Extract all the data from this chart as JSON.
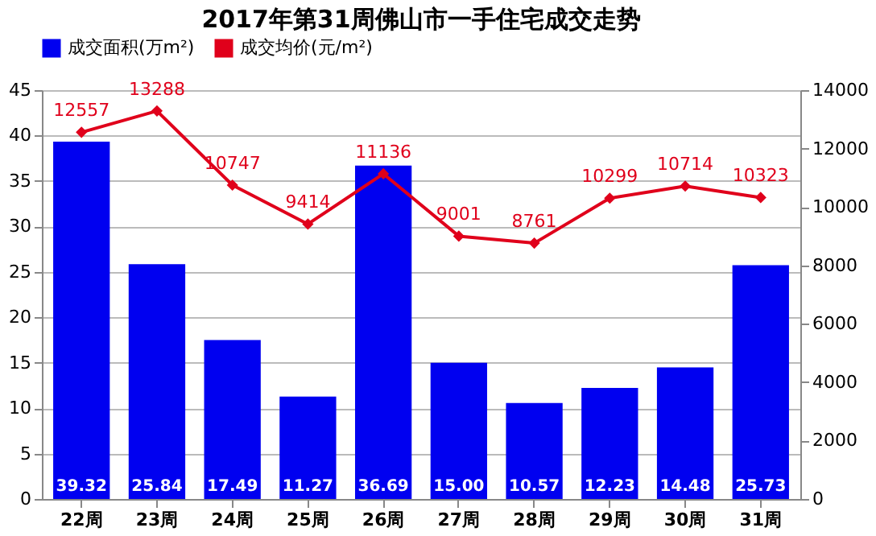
{
  "chart_data": {
    "type": "bar",
    "title": "2017年第31周佛山市一手住宅成交走势",
    "categories": [
      "22周",
      "23周",
      "24周",
      "25周",
      "26周",
      "27周",
      "28周",
      "29周",
      "30周",
      "31周"
    ],
    "series": [
      {
        "name": "成交面积(万m²)",
        "color": "#0000f0",
        "values": [
          39.32,
          25.84,
          17.49,
          11.27,
          36.69,
          15.0,
          10.57,
          12.23,
          14.48,
          25.73
        ],
        "value_labels": [
          "39.32",
          "25.84",
          "17.49",
          "11.27",
          "36.69",
          "15.00",
          "10.57",
          "12.23",
          "14.48",
          "25.73"
        ]
      },
      {
        "name": "成交均价(元/m²)",
        "type": "line",
        "axis": "y2",
        "color": "#e0001b",
        "marker": "diamond",
        "values": [
          12557,
          13288,
          10747,
          9414,
          11136,
          9001,
          8761,
          10299,
          10714,
          10323
        ],
        "value_labels": [
          "12557",
          "13288",
          "10747",
          "9414",
          "11136",
          "9001",
          "8761",
          "10299",
          "10714",
          "10323"
        ]
      }
    ],
    "ylim": [
      0,
      45
    ],
    "yticks": [
      0,
      5,
      10,
      15,
      20,
      25,
      30,
      35,
      40,
      45
    ],
    "y2lim": [
      0,
      14000
    ],
    "y2ticks": [
      0,
      2000,
      4000,
      6000,
      8000,
      10000,
      12000,
      14000
    ],
    "grid": "y",
    "legend": "top"
  }
}
